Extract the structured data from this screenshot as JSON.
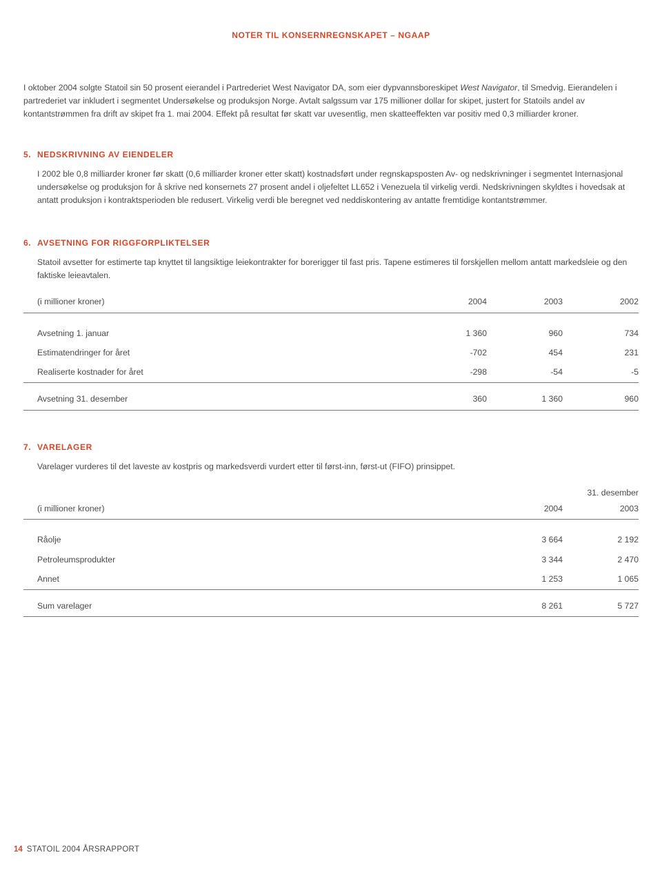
{
  "header": {
    "title": "NOTER TIL KONSERNREGNSKAPET – NGAAP"
  },
  "intro": {
    "text_pre": "I oktober 2004 solgte Statoil sin 50 prosent eierandel i Partrederiet West Navigator DA, som eier dypvannsboreskipet ",
    "italic": "West Navigator",
    "text_post": ", til Smedvig. Eierandelen i partrederiet var inkludert i segmentet Undersøkelse og produksjon Norge. Avtalt salgssum var 175 millioner dollar for skipet, justert for Statoils andel av kontantstrømmen fra drift av skipet fra 1. mai 2004. Effekt på resultat før skatt var uvesentlig, men skatteeffekten var positiv med 0,3 milliarder kroner."
  },
  "note5": {
    "num": "5.",
    "title": "NEDSKRIVNING AV EIENDELER",
    "text": "I 2002 ble 0,8 milliarder kroner før skatt (0,6 milliarder kroner etter skatt) kostnadsført under regnskapsposten Av- og nedskrivninger i segmentet Internasjonal undersøkelse og produksjon for å skrive ned konsernets 27 prosent andel i oljefeltet LL652 i Venezuela til virkelig verdi. Nedskrivningen skyldtes i hovedsak at antatt produksjon i kontraktsperioden ble redusert. Virkelig verdi ble beregnet ved neddiskontering av antatte fremtidige kontantstrømmer."
  },
  "note6": {
    "num": "6.",
    "title": "AVSETNING FOR RIGGFORPLIKTELSER",
    "text": "Statoil avsetter for estimerte tap knyttet til langsiktige leiekontrakter for borerigger til fast pris. Tapene estimeres til forskjellen mellom antatt markedsleie og den faktiske leieavtalen.",
    "table": {
      "unit_label": "(i millioner kroner)",
      "cols": [
        "2004",
        "2003",
        "2002"
      ],
      "rows": [
        {
          "label": "Avsetning 1. januar",
          "v": [
            "1 360",
            "960",
            "734"
          ]
        },
        {
          "label": "Estimatendringer for året",
          "v": [
            "-702",
            "454",
            "231"
          ]
        },
        {
          "label": "Realiserte kostnader for året",
          "v": [
            "-298",
            "-54",
            "-5"
          ]
        }
      ],
      "total": {
        "label": "Avsetning 31. desember",
        "v": [
          "360",
          "1 360",
          "960"
        ]
      }
    }
  },
  "note7": {
    "num": "7.",
    "title": "VARELAGER",
    "text": "Varelager vurderes til det laveste av kostpris og markedsverdi vurdert etter til først-inn, først-ut (FIFO) prinsippet.",
    "table": {
      "super": "31. desember",
      "unit_label": "(i millioner kroner)",
      "cols": [
        "2004",
        "2003"
      ],
      "rows": [
        {
          "label": "Råolje",
          "v": [
            "3 664",
            "2 192"
          ]
        },
        {
          "label": "Petroleumsprodukter",
          "v": [
            "3 344",
            "2 470"
          ]
        },
        {
          "label": "Annet",
          "v": [
            "1 253",
            "1 065"
          ]
        }
      ],
      "total": {
        "label": "Sum varelager",
        "v": [
          "8 261",
          "5 727"
        ]
      }
    }
  },
  "footer": {
    "page": "14",
    "text": "STATOIL 2004 ÅRSRAPPORT"
  }
}
